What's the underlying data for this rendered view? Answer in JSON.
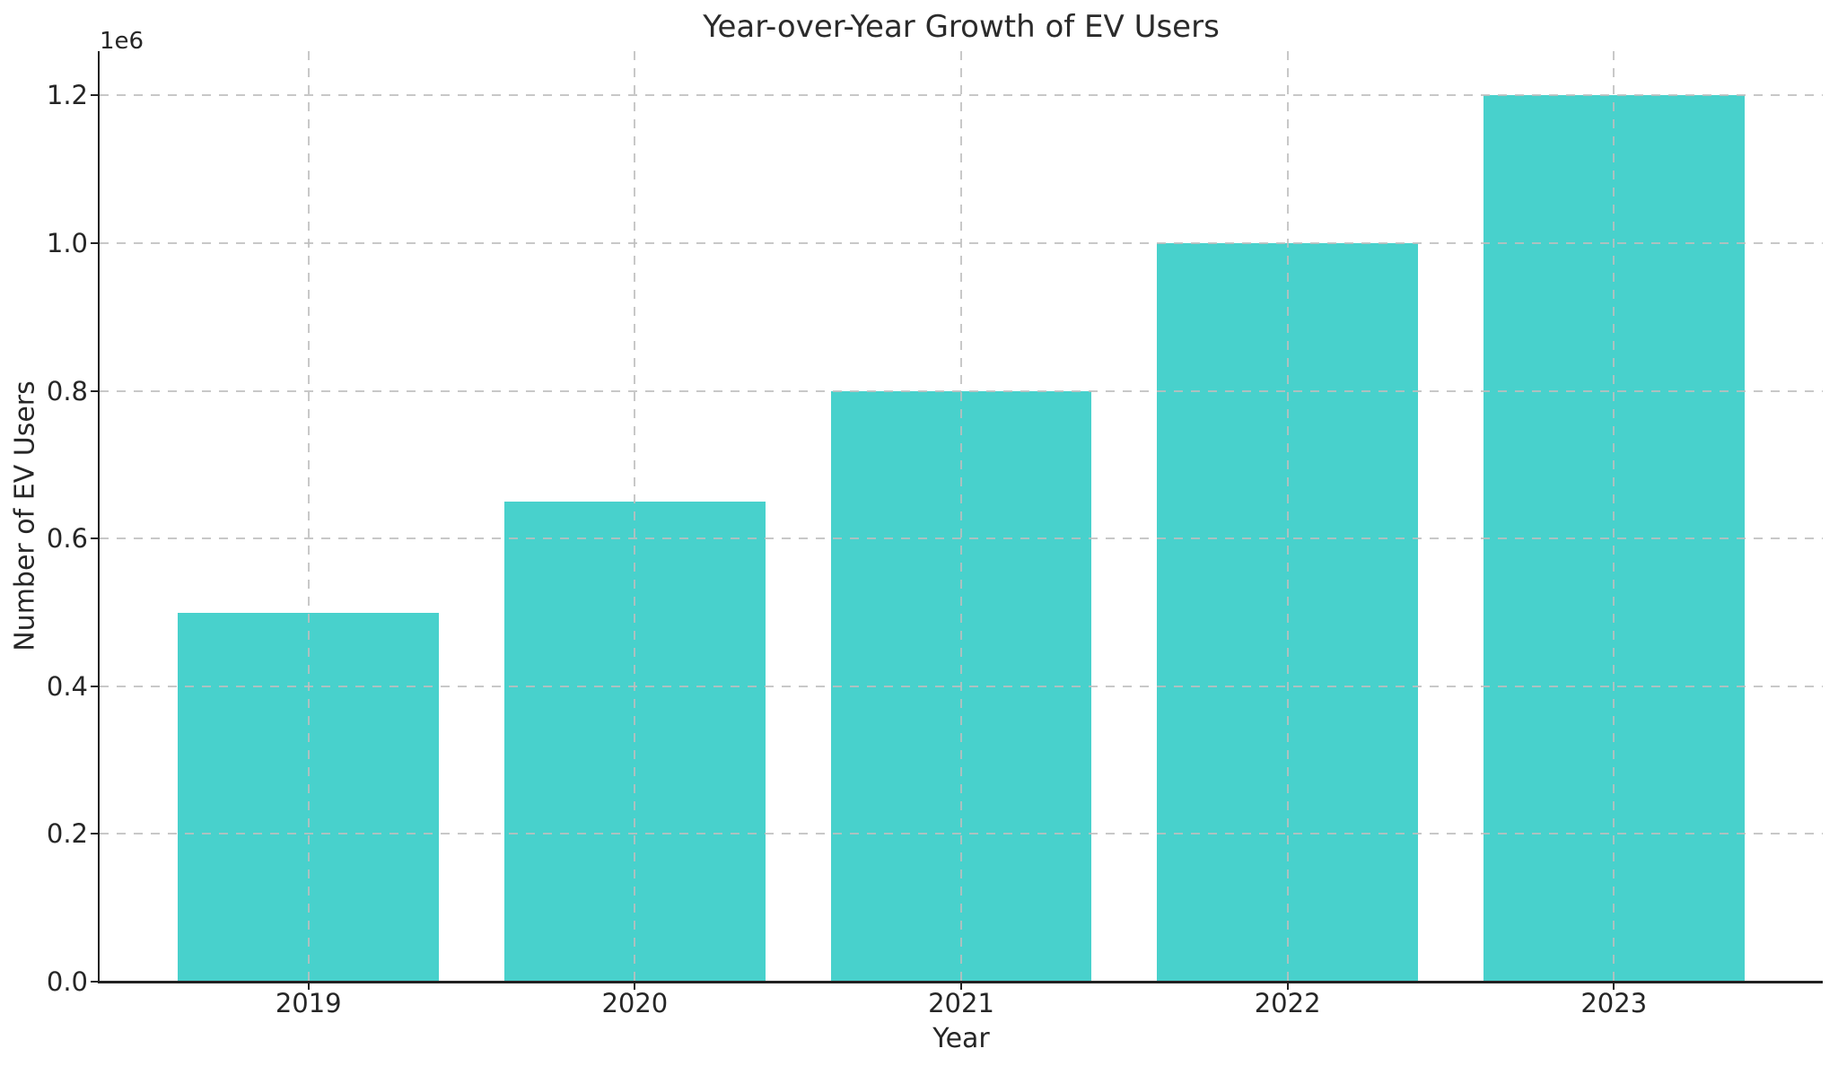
{
  "chart_data": {
    "type": "bar",
    "title": "Year-over-Year Growth of EV Users",
    "xlabel": "Year",
    "ylabel": "Number of EV Users",
    "y_offset_label": "1e6",
    "categories": [
      "2019",
      "2020",
      "2021",
      "2022",
      "2023"
    ],
    "values": [
      500000,
      650000,
      800000,
      1000000,
      1200000
    ],
    "bar_color": "#48D1CC",
    "ylim": [
      0,
      1260000
    ],
    "xlim": [
      -0.64,
      4.64
    ],
    "bar_width": 0.8,
    "yticks": [
      0,
      200000,
      400000,
      600000,
      800000,
      1000000,
      1200000
    ],
    "ytick_labels": [
      "0.0",
      "0.2",
      "0.4",
      "0.6",
      "0.8",
      "1.0",
      "1.2"
    ],
    "grid": "dashed",
    "grid_color": "#c9c9c9",
    "legend": "none",
    "text_color": "#262626",
    "spine_color": "#222222",
    "background_color": "#ffffff"
  }
}
